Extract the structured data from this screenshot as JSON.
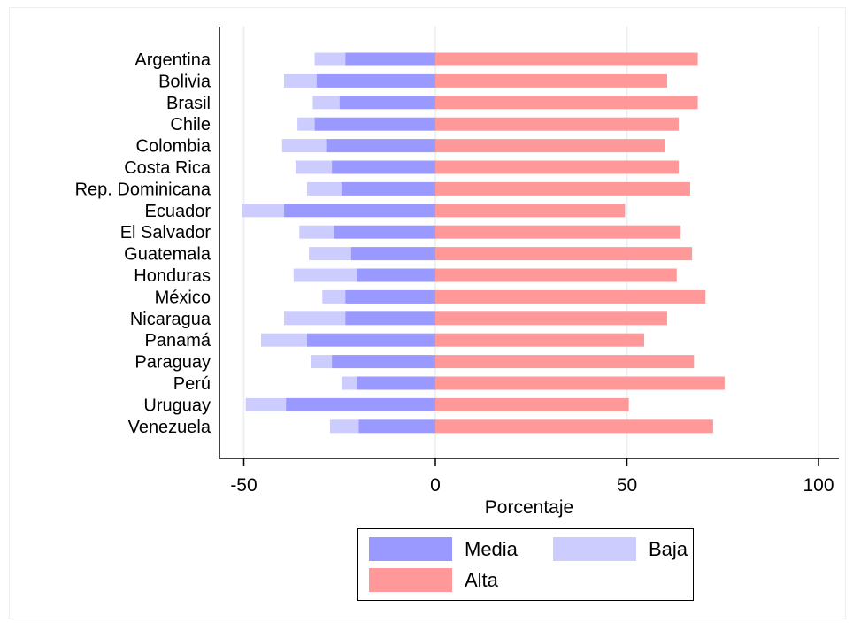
{
  "colors": {
    "media": "#9999ff",
    "baja": "#ccccff",
    "alta": "#ff9999",
    "grid": "#e8eef0",
    "axis": "#000000"
  },
  "chart_data": {
    "type": "bar",
    "orientation": "horizontal",
    "stacked": "diverging",
    "categories": [
      "Argentina",
      "Bolivia",
      "Brasil",
      "Chile",
      "Colombia",
      "Costa Rica",
      "Rep. Dominicana",
      "Ecuador",
      "El Salvador",
      "Guatemala",
      "Honduras",
      "México",
      "Nicaragua",
      "Panamá",
      "Paraguay",
      "Perú",
      "Uruguay",
      "Venezuela"
    ],
    "series": [
      {
        "name": "Media",
        "color": "#9999ff",
        "values": [
          -23.5,
          -31,
          -25,
          -31.5,
          -28.5,
          -27,
          -24.5,
          -39.5,
          -26.5,
          -22,
          -20.5,
          -23.5,
          -23.5,
          -33.5,
          -27,
          -20.5,
          -39,
          -20
        ]
      },
      {
        "name": "Baja",
        "color": "#ccccff",
        "values": [
          -8,
          -8.5,
          -7,
          -4.5,
          -11.5,
          -9.5,
          -9,
          -11,
          -9,
          -11,
          -16.5,
          -6,
          -16,
          -12,
          -5.5,
          -4,
          -10.5,
          -7.5
        ]
      },
      {
        "name": "Alta",
        "color": "#ff9999",
        "values": [
          68.5,
          60.5,
          68.5,
          63.5,
          60,
          63.5,
          66.5,
          49.5,
          64,
          67,
          63,
          70.5,
          60.5,
          54.5,
          67.5,
          75.5,
          50.5,
          72.5
        ]
      }
    ],
    "xlabel": "Porcentaje",
    "ylabel": "",
    "xlim": [
      -56,
      106
    ],
    "xticks": [
      -50,
      0,
      50,
      100
    ],
    "grid": true,
    "legend_placement": "bottom"
  },
  "legend": {
    "media": "Media",
    "baja": "Baja",
    "alta": "Alta"
  }
}
